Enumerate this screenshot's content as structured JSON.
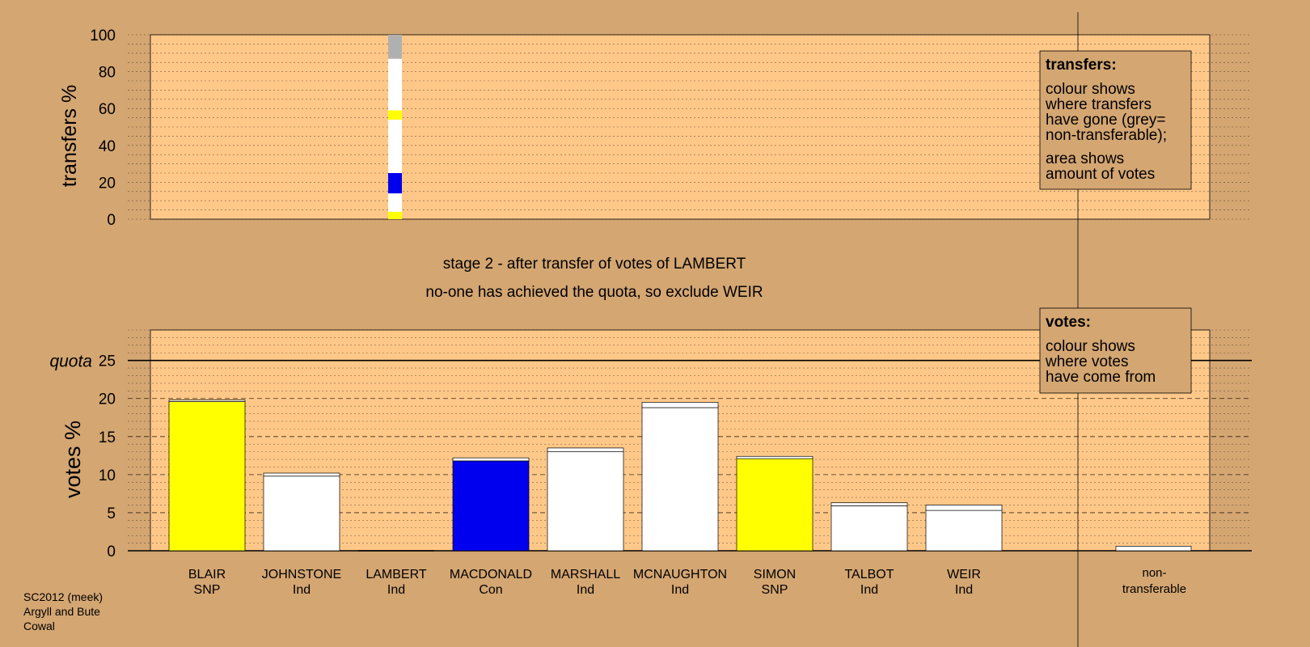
{
  "chart_data": [
    {
      "type": "bar",
      "name": "transfers",
      "ylabel": "transfers %",
      "ylim": [
        0,
        100
      ],
      "yticks": [
        0,
        20,
        40,
        60,
        80,
        100
      ],
      "column": "LAMBERT",
      "segments": [
        {
          "from": 0,
          "to": 4,
          "color": "#ffff00"
        },
        {
          "from": 4,
          "to": 14,
          "color": "#ffffff"
        },
        {
          "from": 14,
          "to": 25,
          "color": "#0000ee"
        },
        {
          "from": 25,
          "to": 54,
          "color": "#ffffff"
        },
        {
          "from": 54,
          "to": 59,
          "color": "#ffff00"
        },
        {
          "from": 59,
          "to": 87,
          "color": "#ffffff"
        },
        {
          "from": 87,
          "to": 100,
          "color": "#b0b0b0"
        }
      ],
      "legend": {
        "title": "transfers:",
        "lines": [
          "colour shows",
          "where transfers",
          "have gone (grey=",
          "non-transferable);"
        ],
        "lines2": [
          "area shows",
          "amount of votes"
        ]
      }
    },
    {
      "type": "bar",
      "name": "votes",
      "ylabel": "votes %",
      "ylim": [
        0,
        29
      ],
      "yticks": [
        0,
        5,
        10,
        15,
        20,
        25
      ],
      "quota": 25,
      "quota_label": "quota",
      "candidates": [
        {
          "name": "BLAIR",
          "party": "SNP",
          "base": 19.6,
          "added": 0.2,
          "color": "#ffff00"
        },
        {
          "name": "JOHNSTONE",
          "party": "Ind",
          "base": 9.8,
          "added": 0.4,
          "color": "#ffffff"
        },
        {
          "name": "LAMBERT",
          "party": "Ind",
          "base": 0,
          "added": 0,
          "color": "#ffffff"
        },
        {
          "name": "MACDONALD",
          "party": "Con",
          "base": 11.8,
          "added": 0.4,
          "color": "#0000ee"
        },
        {
          "name": "MARSHALL",
          "party": "Ind",
          "base": 13.0,
          "added": 0.5,
          "color": "#ffffff"
        },
        {
          "name": "MCNAUGHTON",
          "party": "Ind",
          "base": 18.8,
          "added": 0.7,
          "color": "#ffffff"
        },
        {
          "name": "SIMON",
          "party": "SNP",
          "base": 12.1,
          "added": 0.3,
          "color": "#ffff00"
        },
        {
          "name": "TALBOT",
          "party": "Ind",
          "base": 5.9,
          "added": 0.4,
          "color": "#ffffff"
        },
        {
          "name": "WEIR",
          "party": "Ind",
          "base": 5.3,
          "added": 0.7,
          "color": "#ffffff"
        }
      ],
      "nontransferable": {
        "label1": "non-",
        "label2": "transferable",
        "value": 0.6,
        "color": "#ffffff"
      },
      "legend": {
        "title": "votes:",
        "lines": [
          "colour shows",
          "where votes",
          "have come from"
        ]
      }
    }
  ],
  "stage": {
    "line1": "stage 2 - after transfer of votes of LAMBERT",
    "line2": "no-one has achieved the quota, so exclude WEIR"
  },
  "footer": {
    "line1": "SC2012 (meek)",
    "line2": "Argyll and Bute",
    "line3": "Cowal"
  }
}
